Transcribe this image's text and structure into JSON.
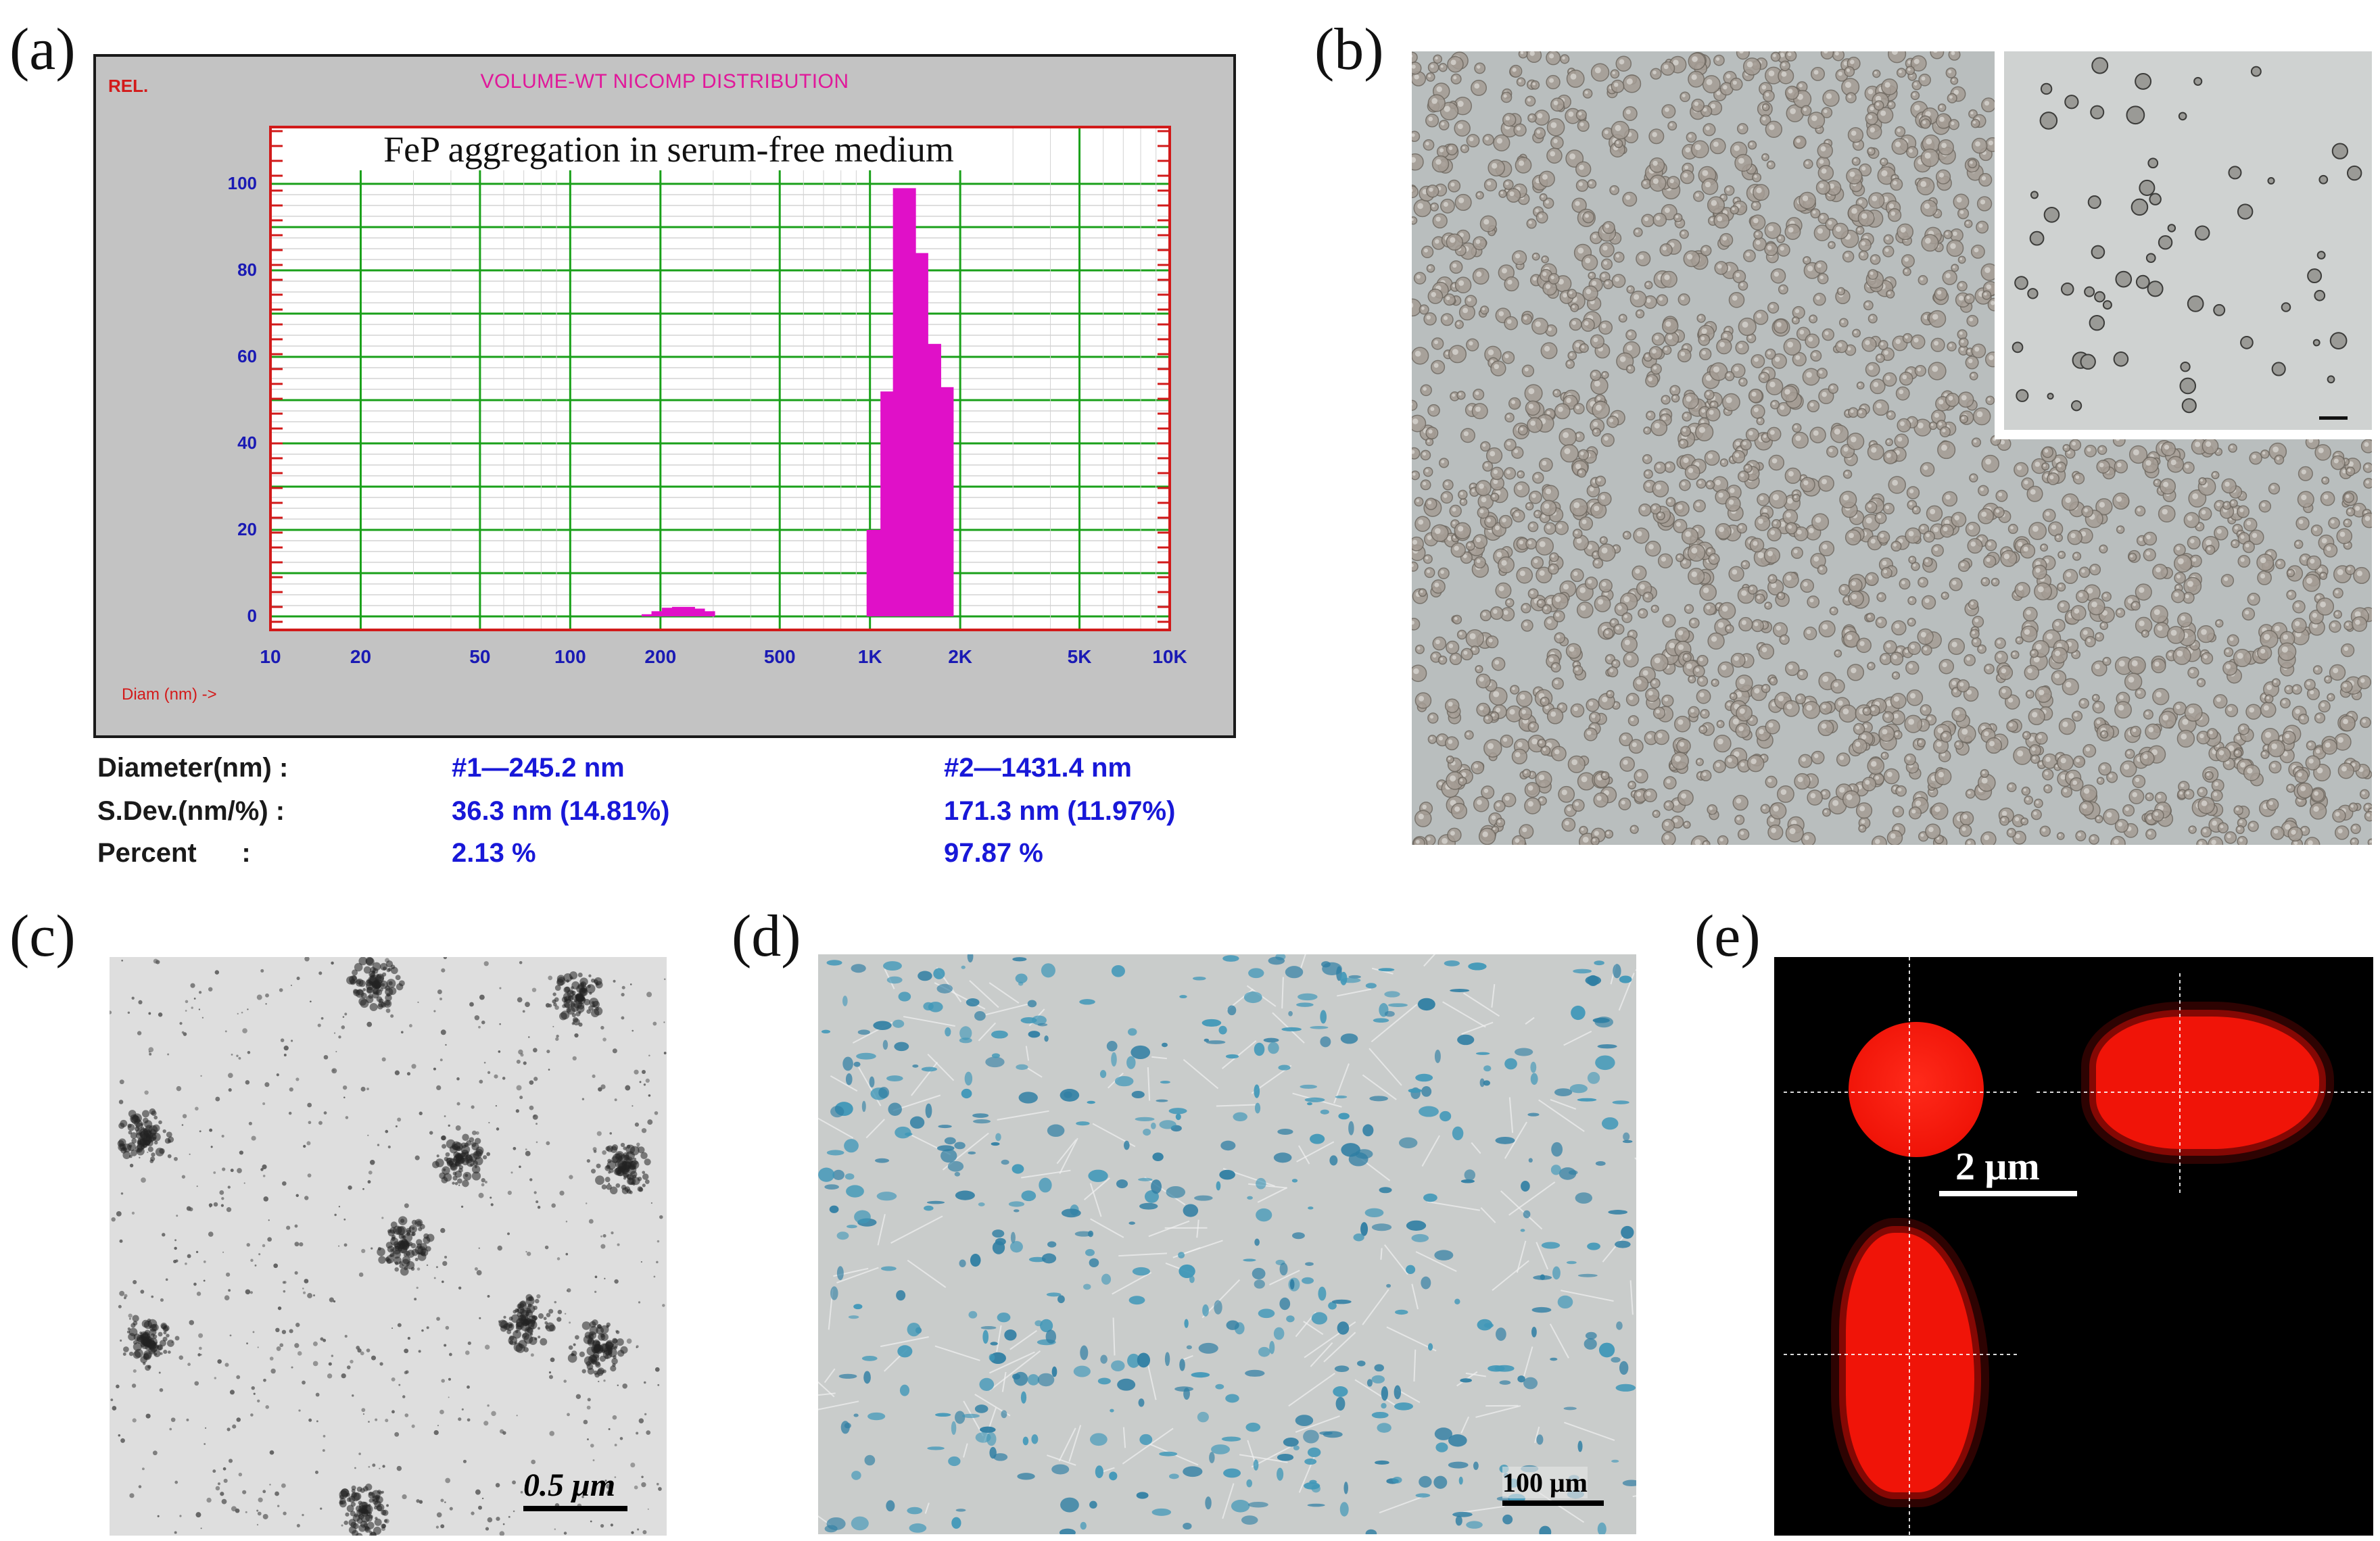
{
  "panel_labels": {
    "a": "(a)",
    "b": "(b)",
    "c": "(c)",
    "d": "(d)",
    "e": "(e)"
  },
  "panel_a": {
    "window_title": "VOLUME-WT NICOMP DISTRIBUTION",
    "y_axis_unit_label": "REL.",
    "x_axis_label": "Diam (nm) ->",
    "chart_caption": "FeP aggregation in serum-free medium",
    "chart_data": {
      "type": "bar",
      "title": "VOLUME-WT NICOMP DISTRIBUTION",
      "xlabel": "Diam (nm) ->",
      "ylabel": "REL.",
      "x_scale": "log",
      "xlim": [
        10,
        10000
      ],
      "ylim": [
        0,
        100
      ],
      "grid": true,
      "x_ticks": [
        {
          "value": 10,
          "label": "10"
        },
        {
          "value": 20,
          "label": "20"
        },
        {
          "value": 50,
          "label": "50"
        },
        {
          "value": 100,
          "label": "100"
        },
        {
          "value": 200,
          "label": "200"
        },
        {
          "value": 500,
          "label": "500"
        },
        {
          "value": 1000,
          "label": "1K"
        },
        {
          "value": 2000,
          "label": "2K"
        },
        {
          "value": 5000,
          "label": "5K"
        },
        {
          "value": 10000,
          "label": "10K"
        }
      ],
      "y_ticks": [
        0,
        20,
        40,
        60,
        80,
        100
      ],
      "bar_color": "#e010c8",
      "bars": [
        {
          "x": 190,
          "y": 0.5
        },
        {
          "x": 205,
          "y": 1.2
        },
        {
          "x": 222,
          "y": 2.0
        },
        {
          "x": 240,
          "y": 2.2
        },
        {
          "x": 259,
          "y": 1.8
        },
        {
          "x": 280,
          "y": 1.2
        },
        {
          "x": 1070,
          "y": 20
        },
        {
          "x": 1190,
          "y": 52
        },
        {
          "x": 1310,
          "y": 99
        },
        {
          "x": 1440,
          "y": 84
        },
        {
          "x": 1590,
          "y": 63
        },
        {
          "x": 1750,
          "y": 53
        }
      ]
    },
    "stats": {
      "diameter": {
        "key": "Diameter(nm) :",
        "peak1": "#1—245.2 nm",
        "peak2": "#2—1431.4 nm"
      },
      "sdev": {
        "key": "S.Dev.(nm/%) :",
        "peak1": "36.3 nm (14.81%)",
        "peak2": "171.3 nm (11.97%)"
      },
      "percent": {
        "key": "Percent      :",
        "peak1": "2.13 %",
        "peak2": "97.87 %"
      }
    }
  },
  "panel_c": {
    "scale_bar": "0.5 μm"
  },
  "panel_d": {
    "scale_bar": "100 μm"
  },
  "panel_e": {
    "scale_bar": "2 μm"
  }
}
